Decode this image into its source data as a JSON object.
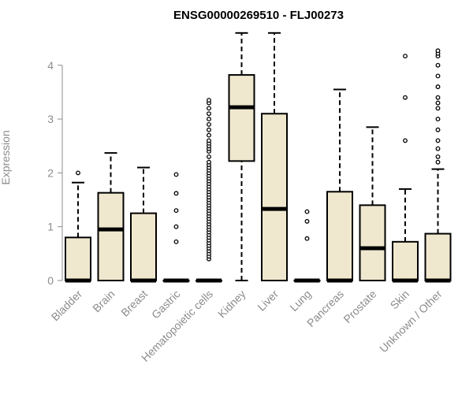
{
  "chart_data": {
    "type": "box",
    "title": "ENSG00000269510 - FLJ00273",
    "xlabel": "",
    "ylabel": "Expression",
    "ylim": [
      0,
      4.6
    ],
    "yticks": [
      0,
      1,
      2,
      3,
      4
    ],
    "grid": false,
    "box_fill": "#efe8cf",
    "categories": [
      "Bladder",
      "Brain",
      "Breast",
      "Gastric",
      "Hematopoietic cells",
      "Kidney",
      "Liver",
      "Lung",
      "Pancreas",
      "Prostate",
      "Skin",
      "Unknown / Other"
    ],
    "boxes": [
      {
        "category": "Bladder",
        "min": 0,
        "q1": 0,
        "median": 0,
        "q3": 0.8,
        "max": 1.82,
        "outliers": [
          2.0
        ]
      },
      {
        "category": "Brain",
        "min": 0,
        "q1": 0,
        "median": 0.95,
        "q3": 1.63,
        "max": 2.37,
        "outliers": []
      },
      {
        "category": "Breast",
        "min": 0,
        "q1": 0,
        "median": 0,
        "q3": 1.25,
        "max": 2.1,
        "outliers": []
      },
      {
        "category": "Gastric",
        "min": 0,
        "q1": 0,
        "median": 0,
        "q3": 0,
        "max": 0,
        "outliers": [
          0.72,
          1.0,
          1.3,
          1.62,
          1.97
        ]
      },
      {
        "category": "Hematopoietic cells",
        "min": 0,
        "q1": 0,
        "median": 0,
        "q3": 0,
        "max": 0,
        "outliers": [
          0.4,
          0.45,
          0.5,
          0.55,
          0.6,
          0.65,
          0.7,
          0.75,
          0.8,
          0.85,
          0.9,
          0.95,
          1.0,
          1.05,
          1.1,
          1.15,
          1.2,
          1.25,
          1.3,
          1.35,
          1.4,
          1.45,
          1.5,
          1.55,
          1.6,
          1.65,
          1.7,
          1.75,
          1.8,
          1.85,
          1.9,
          1.95,
          2.0,
          2.05,
          2.1,
          2.15,
          2.2,
          2.3,
          2.4,
          2.45,
          2.5,
          2.55,
          2.6,
          2.7,
          2.8,
          2.9,
          3.0,
          3.1,
          3.2,
          3.3,
          3.35
        ]
      },
      {
        "category": "Kidney",
        "min": 0,
        "q1": 2.22,
        "median": 3.22,
        "q3": 3.82,
        "max": 4.6,
        "outliers": []
      },
      {
        "category": "Liver",
        "min": 0,
        "q1": 0,
        "median": 1.33,
        "q3": 3.1,
        "max": 4.6,
        "outliers": []
      },
      {
        "category": "Lung",
        "min": 0,
        "q1": 0,
        "median": 0,
        "q3": 0,
        "max": 0,
        "outliers": [
          0.78,
          1.1,
          1.28
        ]
      },
      {
        "category": "Pancreas",
        "min": 0,
        "q1": 0,
        "median": 0,
        "q3": 1.65,
        "max": 3.55,
        "outliers": []
      },
      {
        "category": "Prostate",
        "min": 0,
        "q1": 0,
        "median": 0.6,
        "q3": 1.4,
        "max": 2.85,
        "outliers": []
      },
      {
        "category": "Skin",
        "min": 0,
        "q1": 0,
        "median": 0,
        "q3": 0.72,
        "max": 1.7,
        "outliers": [
          2.6,
          3.4,
          4.17
        ]
      },
      {
        "category": "Unknown / Other",
        "min": 0,
        "q1": 0,
        "median": 0,
        "q3": 0.87,
        "max": 2.07,
        "outliers": [
          2.2,
          2.3,
          2.45,
          2.6,
          2.8,
          3.0,
          3.2,
          3.3,
          3.4,
          3.6,
          3.8,
          4.0,
          4.17,
          4.22,
          4.27
        ]
      }
    ]
  }
}
